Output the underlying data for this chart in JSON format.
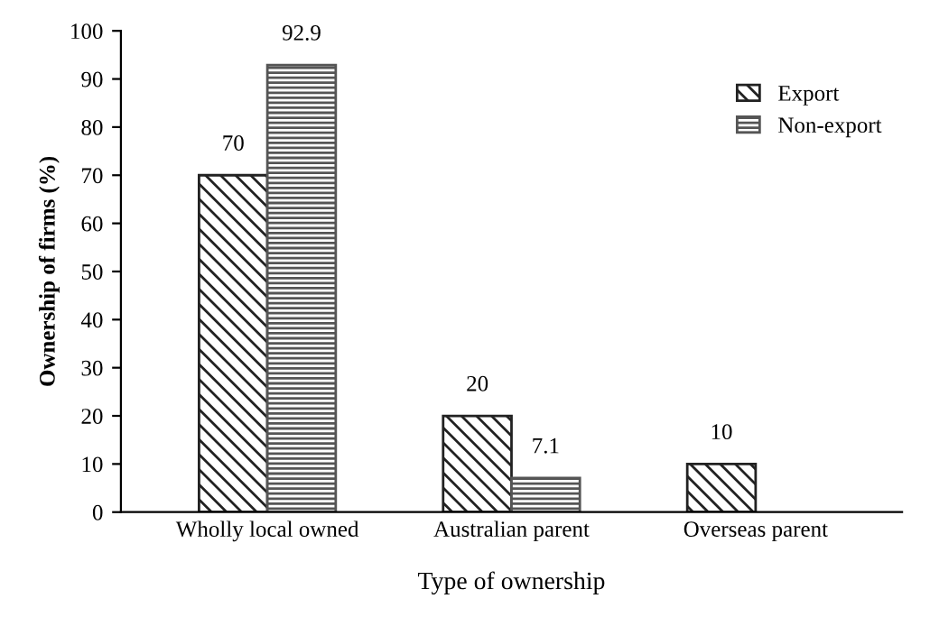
{
  "chart_data": {
    "type": "bar",
    "xlabel": "Type of ownership",
    "ylabel": "Ownership of firms (%)",
    "categories": [
      "Wholly local owned",
      "Australian parent",
      "Overseas parent"
    ],
    "series": [
      {
        "name": "Export",
        "color": "#222222",
        "values": [
          70,
          20,
          10
        ]
      },
      {
        "name": "Non-export",
        "color": "#555555",
        "values": [
          92.9,
          7.1,
          null
        ]
      }
    ],
    "ylim": [
      0,
      100
    ],
    "yticks": [
      0,
      10,
      20,
      30,
      40,
      50,
      60,
      70,
      80,
      90,
      100
    ],
    "data_labels": true,
    "legend": "top right",
    "grid": false
  }
}
